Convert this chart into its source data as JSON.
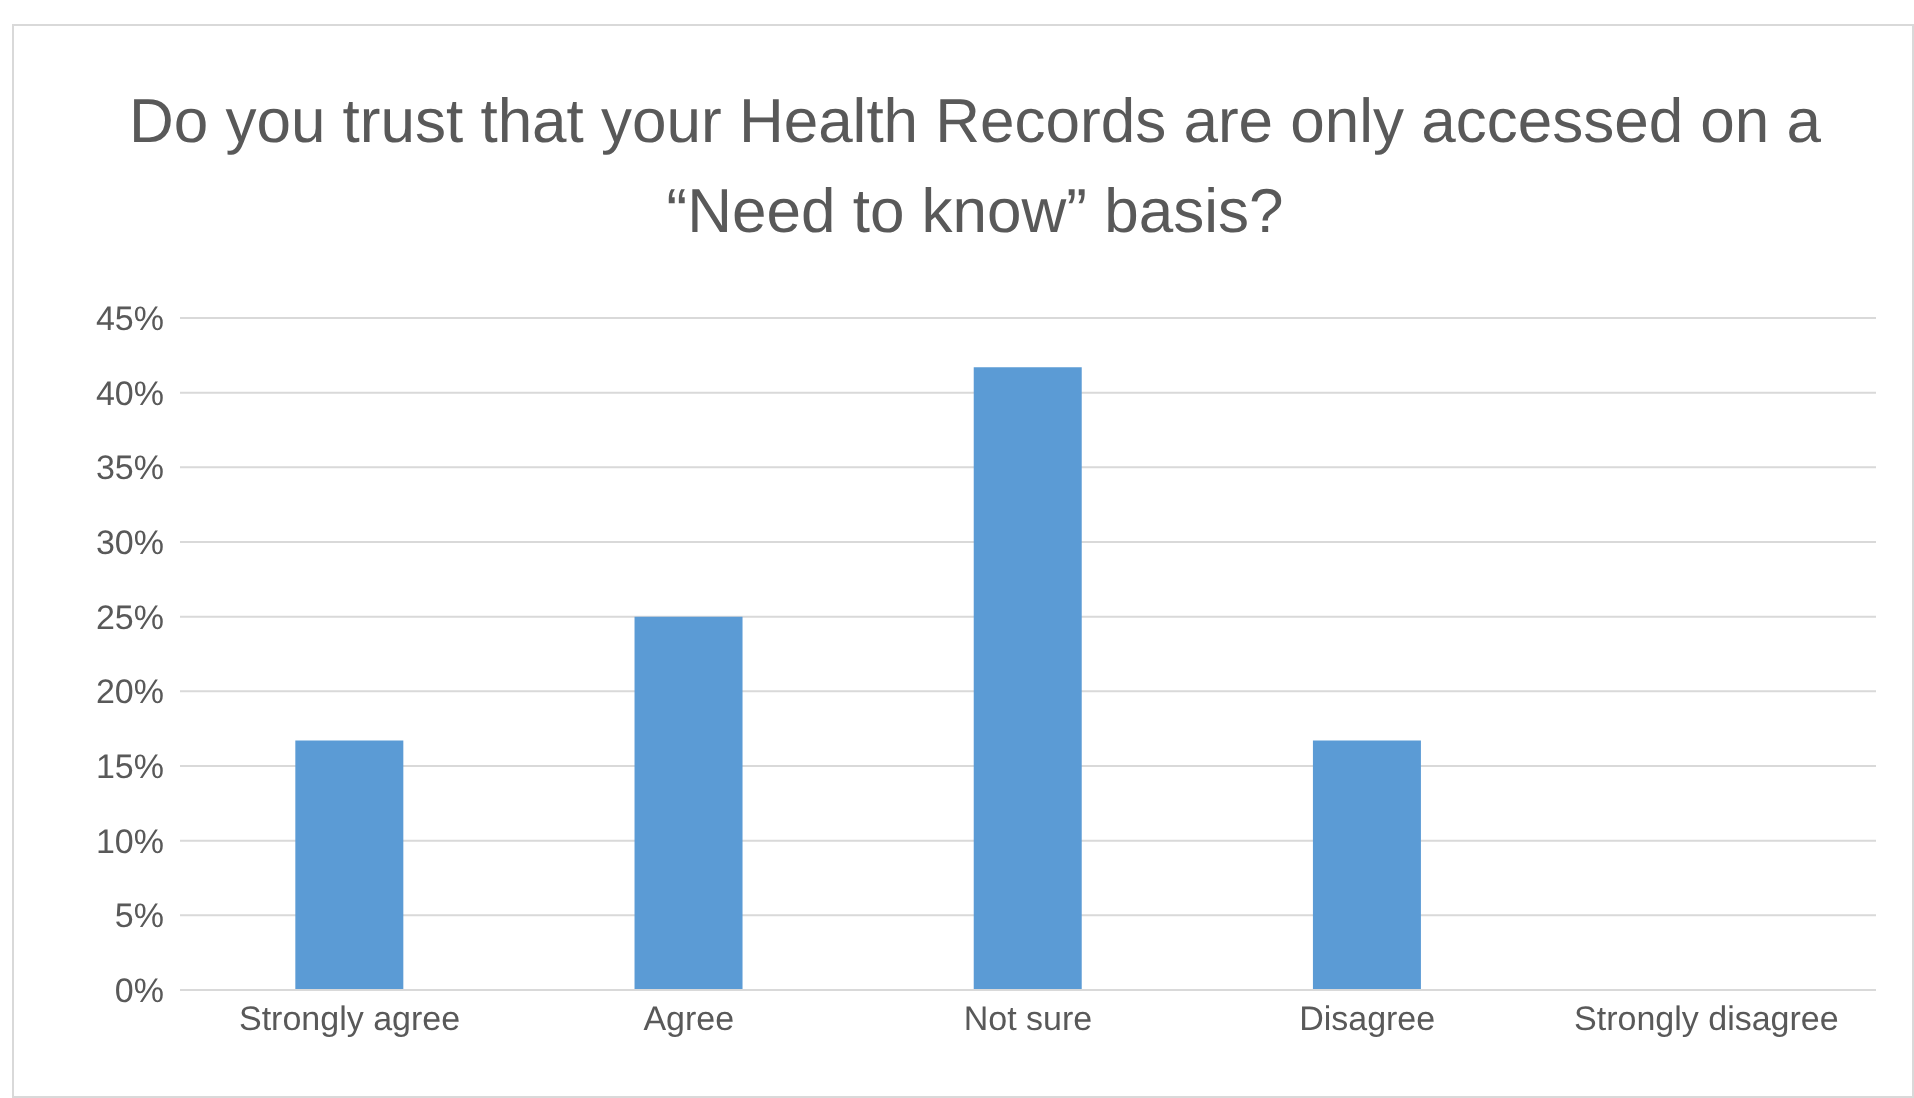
{
  "chart_data": {
    "type": "bar",
    "title": "Do you trust that your Health Records are only accessed on a “Need to know” basis?",
    "categories": [
      "Strongly agree",
      "Agree",
      "Not sure",
      "Disagree",
      "Strongly disagree"
    ],
    "values": [
      16.7,
      25,
      41.7,
      16.7,
      0
    ],
    "color": "#5b9bd5",
    "ylim": [
      0,
      45
    ],
    "yticks": [
      {
        "value": 0,
        "label": "0%"
      },
      {
        "value": 5,
        "label": "5%"
      },
      {
        "value": 10,
        "label": "10%"
      },
      {
        "value": 15,
        "label": "15%"
      },
      {
        "value": 20,
        "label": "20%"
      },
      {
        "value": 25,
        "label": "25%"
      },
      {
        "value": 30,
        "label": "30%"
      },
      {
        "value": 35,
        "label": "35%"
      },
      {
        "value": 40,
        "label": "40%"
      },
      {
        "value": 45,
        "label": "45%"
      }
    ],
    "grid": "y",
    "legend": false
  }
}
